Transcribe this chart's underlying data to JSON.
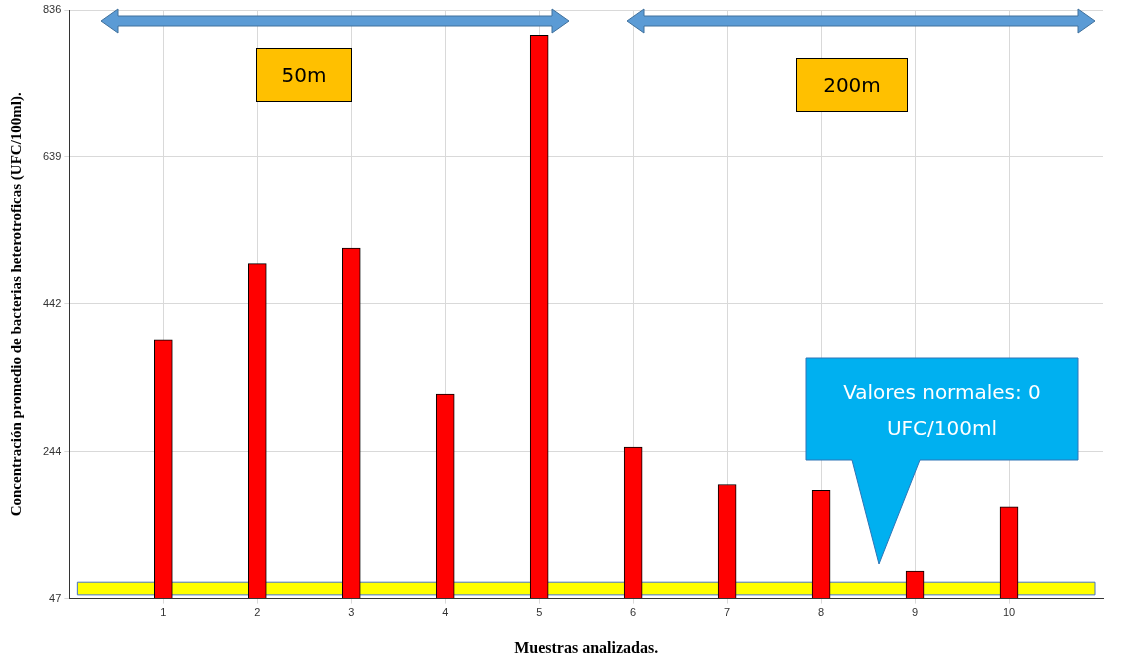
{
  "chart_data": {
    "type": "bar",
    "xlabel": "Muestras analizadas.",
    "ylabel": "Concentración promedio de bacterias heterotroficas (UFC/100ml).",
    "x": [
      1,
      2,
      3,
      4,
      5,
      6,
      7,
      8,
      9,
      10
    ],
    "values": [
      394,
      496,
      517,
      321,
      802,
      250,
      200,
      192,
      84,
      170
    ],
    "color": "#ff0000",
    "xlim": [
      0,
      11
    ],
    "xticks": [
      1,
      2,
      3,
      4,
      5,
      6,
      7,
      8,
      9,
      10
    ],
    "ylim": [
      47,
      836
    ],
    "yticks": [
      47,
      244,
      442,
      639,
      836
    ],
    "grid": true,
    "bands": [
      {
        "axis": "y",
        "from": 52,
        "to": 69,
        "color": "#ffff00"
      }
    ],
    "annotations": [
      "50m",
      "200m",
      "Valores normales: 0 UFC/100ml"
    ]
  }
}
